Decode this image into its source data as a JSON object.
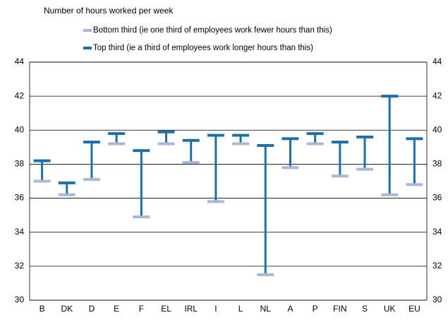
{
  "chart_data": {
    "type": "range",
    "title": "Number of hours worked per week",
    "categories": [
      "B",
      "DK",
      "D",
      "E",
      "F",
      "EL",
      "IRL",
      "I",
      "L",
      "NL",
      "A",
      "P",
      "FIN",
      "S",
      "UK",
      "EU"
    ],
    "series": [
      {
        "name": "Bottom third (ie one third of employees work fewer hours than this)",
        "color": "#a9b8d8",
        "values": [
          37.0,
          36.2,
          37.1,
          39.2,
          34.9,
          39.2,
          38.1,
          35.8,
          39.2,
          31.5,
          37.8,
          39.2,
          37.3,
          37.7,
          36.2,
          36.8
        ]
      },
      {
        "name": "Top third (ie a third of employees work longer hours than this)",
        "color": "#1f6eaa",
        "values": [
          38.2,
          36.9,
          39.3,
          39.8,
          38.8,
          39.9,
          39.4,
          39.7,
          39.7,
          39.1,
          39.5,
          39.8,
          39.3,
          39.6,
          42.0,
          39.5
        ]
      }
    ],
    "ylim": [
      30,
      44
    ],
    "yticks": [
      30,
      32,
      34,
      36,
      38,
      40,
      42,
      44
    ],
    "grid": true
  }
}
